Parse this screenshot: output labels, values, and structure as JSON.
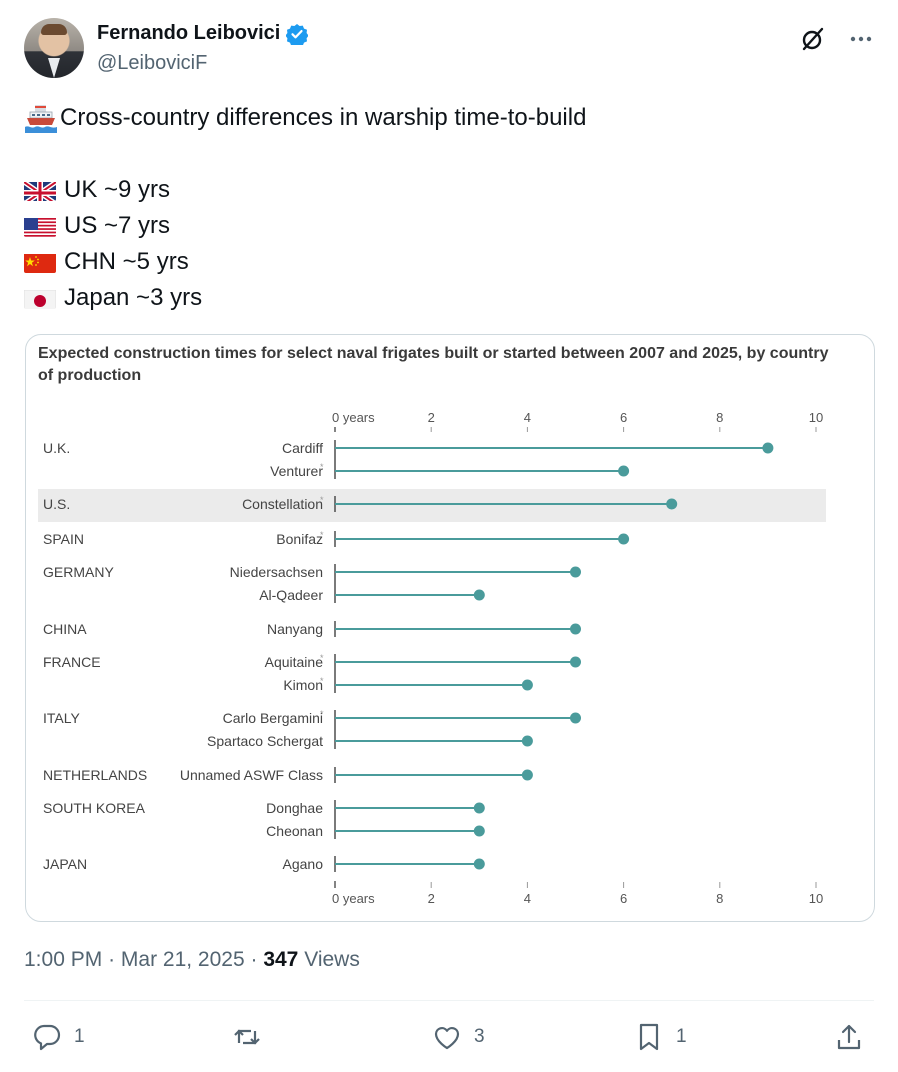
{
  "author": {
    "display_name": "Fernando Leibovici",
    "handle": "@LeiboviciF",
    "verified_color": "#1d9bf0"
  },
  "header_icons": [
    "grok-icon",
    "more-icon"
  ],
  "tweet": {
    "headline": "Cross-country differences in warship time-to-build",
    "lines": [
      {
        "flag": "uk-flag-icon",
        "text": "UK ~9 yrs"
      },
      {
        "flag": "us-flag-icon",
        "text": "US ~7 yrs"
      },
      {
        "flag": "china-flag-icon",
        "text": "CHN ~5 yrs"
      },
      {
        "flag": "japan-flag-icon",
        "text": "Japan ~3 yrs"
      }
    ]
  },
  "chart_data": {
    "type": "lollipop",
    "title": "Expected construction times for select naval frigates built or started between 2007 and 2025, by country of production",
    "x_ticks": [
      "0 years",
      "2",
      "4",
      "6",
      "8",
      "10"
    ],
    "xlim": [
      0,
      10
    ],
    "color": "#4a9b9b",
    "highlight_color": "#ebebeb",
    "rows": [
      {
        "country": "U.K.",
        "ship": "Cardiff",
        "years": 9,
        "mark": false
      },
      {
        "country": "",
        "ship": "Venturer",
        "years": 6,
        "mark": true
      },
      {
        "country": "U.S.",
        "ship": "Constellation",
        "years": 7,
        "mark": true,
        "highlight": true
      },
      {
        "country": "SPAIN",
        "ship": "Bonifaz",
        "years": 6,
        "mark": true
      },
      {
        "country": "GERMANY",
        "ship": "Niedersachsen",
        "years": 5,
        "mark": false
      },
      {
        "country": "",
        "ship": "Al-Qadeer",
        "years": 3,
        "mark": false
      },
      {
        "country": "CHINA",
        "ship": "Nanyang",
        "years": 5,
        "mark": false
      },
      {
        "country": "FRANCE",
        "ship": "Aquitaine",
        "years": 5,
        "mark": true
      },
      {
        "country": "",
        "ship": "Kimon",
        "years": 4,
        "mark": true
      },
      {
        "country": "ITALY",
        "ship": "Carlo Bergamini",
        "years": 5,
        "mark": true
      },
      {
        "country": "",
        "ship": "Spartaco Schergat",
        "years": 4,
        "mark": false
      },
      {
        "country": "NETHERLANDS",
        "ship": "Unnamed ASWF Class",
        "years": 4,
        "mark": false
      },
      {
        "country": "SOUTH KOREA",
        "ship": "Donghae",
        "years": 3,
        "mark": false
      },
      {
        "country": "",
        "ship": "Cheonan",
        "years": 3,
        "mark": false
      },
      {
        "country": "JAPAN",
        "ship": "Agano",
        "years": 3,
        "mark": false
      }
    ]
  },
  "meta": {
    "time": "1:00 PM",
    "date": "Mar 21, 2025",
    "views_count": "347",
    "views_label": "Views"
  },
  "actions": {
    "reply_count": "1",
    "repost_count": "",
    "like_count": "3",
    "bookmark_count": "1"
  }
}
